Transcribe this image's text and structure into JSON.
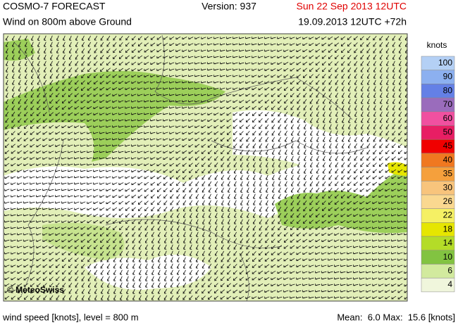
{
  "header": {
    "title": "COSMO-7 FORECAST",
    "version": "Version: 937",
    "valid_time": "Sun 22 Sep 2013 12UTC",
    "subtitle": "Wind on 800m above Ground",
    "run": "19.09.2013 12UTC +72h"
  },
  "map": {
    "copyright": "© MeteoSwiss"
  },
  "legend": {
    "unit": "knots",
    "entries": [
      {
        "label": 100,
        "color": "#b4d0f5"
      },
      {
        "label": 90,
        "color": "#8cb0f0"
      },
      {
        "label": 80,
        "color": "#6480e6"
      },
      {
        "label": 70,
        "color": "#9a6cbc"
      },
      {
        "label": 60,
        "color": "#f050a0"
      },
      {
        "label": 50,
        "color": "#e81e64"
      },
      {
        "label": 45,
        "color": "#f00000"
      },
      {
        "label": 40,
        "color": "#f07820"
      },
      {
        "label": 35,
        "color": "#f5a03c"
      },
      {
        "label": 30,
        "color": "#f8c47c"
      },
      {
        "label": 26,
        "color": "#fad890"
      },
      {
        "label": 22,
        "color": "#f5f064"
      },
      {
        "label": 18,
        "color": "#e6e600"
      },
      {
        "label": 14,
        "color": "#b4dc28"
      },
      {
        "label": 10,
        "color": "#82c341"
      },
      {
        "label": 6,
        "color": "#d2ea9e"
      },
      {
        "label": 4,
        "color": "#f0f6dc"
      }
    ]
  },
  "footer": {
    "left": "wind speed [knots], level = 800 m",
    "right": "Mean:  6.0 Max:  15.6 [knots]"
  }
}
